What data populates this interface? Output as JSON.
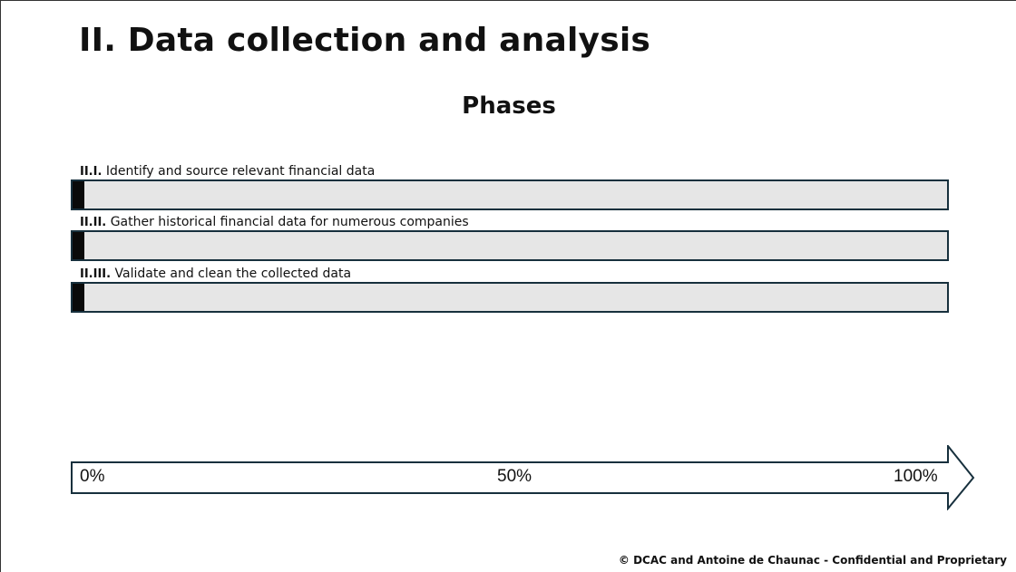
{
  "slide": {
    "title": "II. Data collection and analysis",
    "subtitle": "Phases",
    "footer": "© DCAC and Antoine de Chaunac - Confidential and Proprietary"
  },
  "phases": [
    {
      "number": "II.I.",
      "label": "Identify and source relevant financial data",
      "progress": 0.013
    },
    {
      "number": "II.II.",
      "label": "Gather historical financial data for numerous companies",
      "progress": 0.013
    },
    {
      "number": "II.III.",
      "label": "Validate and clean the collected data",
      "progress": 0.013
    }
  ],
  "scale": {
    "start": "0%",
    "middle": "50%",
    "end": "100%"
  },
  "colors": {
    "bar_border": "#17303d",
    "bar_track": "#e6e6e6",
    "bar_fill": "#0a0a0a"
  }
}
